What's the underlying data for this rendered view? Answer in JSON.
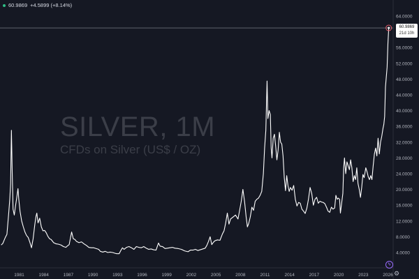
{
  "header": {
    "price": "60.9869",
    "change": "+4.5899 (+8.14%)",
    "indicator_color": "#2ebd85"
  },
  "watermark": {
    "title": "SILVER, 1M",
    "subtitle": "CFDs on Silver (US$ / OZ)"
  },
  "price_tag": {
    "price": "60.9869",
    "countdown": "21d 10h"
  },
  "icons": {
    "bolt": "lightning-icon",
    "gear": "gear-icon"
  },
  "chart_data": {
    "type": "line",
    "x_ticks": [
      "1981",
      "1984",
      "1987",
      "1990",
      "1993",
      "1996",
      "1999",
      "2002",
      "2005",
      "2008",
      "2011",
      "2014",
      "2017",
      "2020",
      "2023",
      "2026"
    ],
    "y_ticks": [
      "4.0000",
      "8.0000",
      "12.0000",
      "16.0000",
      "20.0000",
      "24.0000",
      "28.0000",
      "32.0000",
      "36.0000",
      "40.0000",
      "44.0000",
      "48.0000",
      "52.0000",
      "56.0000",
      "60.0000",
      "64.0000"
    ],
    "y_scale": "linear",
    "ylim": [
      0,
      65
    ],
    "xlim": [
      1978.8,
      2026.3
    ],
    "grid": false,
    "series_color": "#ffffff",
    "last_value": 60.9869,
    "points": [
      [
        1978.8,
        5.9
      ],
      [
        1979.0,
        6.3
      ],
      [
        1979.3,
        7.8
      ],
      [
        1979.5,
        8.6
      ],
      [
        1979.7,
        13.5
      ],
      [
        1979.85,
        17.5
      ],
      [
        1979.95,
        21.5
      ],
      [
        1980.05,
        35.0
      ],
      [
        1980.15,
        24.0
      ],
      [
        1980.25,
        15.0
      ],
      [
        1980.4,
        13.5
      ],
      [
        1980.55,
        15.8
      ],
      [
        1980.7,
        17.9
      ],
      [
        1980.85,
        20.2
      ],
      [
        1980.95,
        17.5
      ],
      [
        1981.1,
        14.5
      ],
      [
        1981.3,
        12.0
      ],
      [
        1981.5,
        10.5
      ],
      [
        1981.7,
        9.2
      ],
      [
        1981.9,
        8.3
      ],
      [
        1982.1,
        7.8
      ],
      [
        1982.3,
        6.6
      ],
      [
        1982.5,
        5.2
      ],
      [
        1982.7,
        7.5
      ],
      [
        1982.9,
        11.0
      ],
      [
        1983.05,
        13.2
      ],
      [
        1983.15,
        14.0
      ],
      [
        1983.3,
        11.5
      ],
      [
        1983.5,
        12.7
      ],
      [
        1983.7,
        10.5
      ],
      [
        1983.9,
        9.5
      ],
      [
        1984.1,
        9.6
      ],
      [
        1984.3,
        9.0
      ],
      [
        1984.5,
        8.1
      ],
      [
        1984.7,
        7.5
      ],
      [
        1984.9,
        7.3
      ],
      [
        1985.2,
        6.5
      ],
      [
        1985.5,
        6.2
      ],
      [
        1985.8,
        6.1
      ],
      [
        1986.1,
        5.9
      ],
      [
        1986.4,
        5.5
      ],
      [
        1986.7,
        5.3
      ],
      [
        1986.9,
        5.7
      ],
      [
        1987.1,
        6.0
      ],
      [
        1987.3,
        8.2
      ],
      [
        1987.4,
        9.2
      ],
      [
        1987.6,
        7.5
      ],
      [
        1987.8,
        7.3
      ],
      [
        1988.0,
        6.8
      ],
      [
        1988.3,
        6.5
      ],
      [
        1988.6,
        6.7
      ],
      [
        1988.9,
        6.2
      ],
      [
        1989.2,
        5.8
      ],
      [
        1989.5,
        5.3
      ],
      [
        1989.8,
        5.2
      ],
      [
        1990.1,
        5.2
      ],
      [
        1990.4,
        5.0
      ],
      [
        1990.7,
        4.8
      ],
      [
        1990.9,
        4.3
      ],
      [
        1991.2,
        4.1
      ],
      [
        1991.5,
        4.3
      ],
      [
        1991.8,
        4.0
      ],
      [
        1992.1,
        4.1
      ],
      [
        1992.4,
        4.0
      ],
      [
        1992.7,
        3.8
      ],
      [
        1992.9,
        3.7
      ],
      [
        1993.2,
        3.7
      ],
      [
        1993.4,
        4.5
      ],
      [
        1993.6,
        5.2
      ],
      [
        1993.8,
        4.8
      ],
      [
        1994.1,
        5.3
      ],
      [
        1994.4,
        5.5
      ],
      [
        1994.7,
        5.2
      ],
      [
        1995.0,
        4.8
      ],
      [
        1995.3,
        5.5
      ],
      [
        1995.6,
        5.3
      ],
      [
        1995.9,
        5.2
      ],
      [
        1996.2,
        5.5
      ],
      [
        1996.5,
        5.1
      ],
      [
        1996.8,
        4.8
      ],
      [
        1997.1,
        4.9
      ],
      [
        1997.4,
        4.7
      ],
      [
        1997.7,
        4.6
      ],
      [
        1998.0,
        6.4
      ],
      [
        1998.2,
        5.6
      ],
      [
        1998.5,
        5.5
      ],
      [
        1998.8,
        5.0
      ],
      [
        1999.1,
        5.1
      ],
      [
        1999.4,
        5.2
      ],
      [
        1999.7,
        5.3
      ],
      [
        2000.0,
        5.1
      ],
      [
        2000.4,
        5.0
      ],
      [
        2000.8,
        4.8
      ],
      [
        2001.2,
        4.4
      ],
      [
        2001.6,
        4.2
      ],
      [
        2001.9,
        4.6
      ],
      [
        2002.2,
        4.6
      ],
      [
        2002.5,
        4.8
      ],
      [
        2002.8,
        4.5
      ],
      [
        2003.1,
        4.7
      ],
      [
        2003.4,
        4.9
      ],
      [
        2003.7,
        5.1
      ],
      [
        2003.9,
        5.8
      ],
      [
        2004.1,
        6.8
      ],
      [
        2004.3,
        8.0
      ],
      [
        2004.5,
        6.0
      ],
      [
        2004.7,
        6.6
      ],
      [
        2004.9,
        7.0
      ],
      [
        2005.2,
        7.2
      ],
      [
        2005.5,
        7.1
      ],
      [
        2005.8,
        8.7
      ],
      [
        2006.0,
        9.5
      ],
      [
        2006.2,
        11.5
      ],
      [
        2006.4,
        14.0
      ],
      [
        2006.6,
        11.2
      ],
      [
        2006.8,
        12.5
      ],
      [
        2007.1,
        13.0
      ],
      [
        2007.4,
        13.5
      ],
      [
        2007.7,
        12.5
      ],
      [
        2007.9,
        14.7
      ],
      [
        2008.1,
        17.0
      ],
      [
        2008.3,
        20.0
      ],
      [
        2008.5,
        17.0
      ],
      [
        2008.7,
        13.0
      ],
      [
        2008.85,
        10.5
      ],
      [
        2009.0,
        11.3
      ],
      [
        2009.2,
        13.0
      ],
      [
        2009.4,
        15.5
      ],
      [
        2009.6,
        14.7
      ],
      [
        2009.8,
        17.0
      ],
      [
        2010.0,
        17.5
      ],
      [
        2010.2,
        17.8
      ],
      [
        2010.4,
        18.5
      ],
      [
        2010.6,
        19.5
      ],
      [
        2010.8,
        24.0
      ],
      [
        2010.95,
        30.5
      ],
      [
        2011.1,
        35.0
      ],
      [
        2011.25,
        47.5
      ],
      [
        2011.35,
        38.0
      ],
      [
        2011.5,
        40.0
      ],
      [
        2011.65,
        39.0
      ],
      [
        2011.75,
        30.5
      ],
      [
        2011.85,
        28.0
      ],
      [
        2012.0,
        33.0
      ],
      [
        2012.15,
        34.0
      ],
      [
        2012.3,
        31.0
      ],
      [
        2012.45,
        27.5
      ],
      [
        2012.6,
        30.0
      ],
      [
        2012.75,
        34.5
      ],
      [
        2012.9,
        32.0
      ],
      [
        2013.05,
        31.5
      ],
      [
        2013.2,
        28.5
      ],
      [
        2013.35,
        23.0
      ],
      [
        2013.5,
        19.7
      ],
      [
        2013.65,
        23.5
      ],
      [
        2013.8,
        21.0
      ],
      [
        2013.95,
        19.5
      ],
      [
        2014.1,
        20.5
      ],
      [
        2014.3,
        19.8
      ],
      [
        2014.5,
        21.0
      ],
      [
        2014.7,
        17.5
      ],
      [
        2014.9,
        15.8
      ],
      [
        2015.1,
        16.7
      ],
      [
        2015.3,
        16.5
      ],
      [
        2015.5,
        15.0
      ],
      [
        2015.7,
        14.5
      ],
      [
        2015.9,
        13.9
      ],
      [
        2016.1,
        15.2
      ],
      [
        2016.3,
        17.5
      ],
      [
        2016.5,
        20.5
      ],
      [
        2016.7,
        19.0
      ],
      [
        2016.9,
        16.0
      ],
      [
        2017.1,
        17.5
      ],
      [
        2017.3,
        18.0
      ],
      [
        2017.5,
        16.5
      ],
      [
        2017.7,
        17.0
      ],
      [
        2017.9,
        16.8
      ],
      [
        2018.1,
        16.7
      ],
      [
        2018.3,
        16.4
      ],
      [
        2018.5,
        15.5
      ],
      [
        2018.7,
        14.5
      ],
      [
        2018.9,
        14.2
      ],
      [
        2019.1,
        15.5
      ],
      [
        2019.3,
        15.0
      ],
      [
        2019.5,
        15.3
      ],
      [
        2019.65,
        18.5
      ],
      [
        2019.8,
        17.5
      ],
      [
        2019.95,
        17.8
      ],
      [
        2020.1,
        17.5
      ],
      [
        2020.2,
        14.0
      ],
      [
        2020.35,
        16.5
      ],
      [
        2020.5,
        19.0
      ],
      [
        2020.6,
        25.5
      ],
      [
        2020.7,
        28.0
      ],
      [
        2020.85,
        24.0
      ],
      [
        2021.0,
        27.0
      ],
      [
        2021.15,
        26.0
      ],
      [
        2021.3,
        25.0
      ],
      [
        2021.45,
        27.5
      ],
      [
        2021.6,
        25.5
      ],
      [
        2021.75,
        22.0
      ],
      [
        2021.9,
        23.5
      ],
      [
        2022.05,
        22.5
      ],
      [
        2022.2,
        25.5
      ],
      [
        2022.35,
        21.5
      ],
      [
        2022.5,
        20.0
      ],
      [
        2022.65,
        18.0
      ],
      [
        2022.8,
        20.5
      ],
      [
        2022.95,
        23.8
      ],
      [
        2023.1,
        23.0
      ],
      [
        2023.3,
        25.5
      ],
      [
        2023.45,
        24.5
      ],
      [
        2023.6,
        23.2
      ],
      [
        2023.75,
        22.5
      ],
      [
        2023.9,
        23.5
      ],
      [
        2024.05,
        22.5
      ],
      [
        2024.2,
        26.0
      ],
      [
        2024.35,
        29.0
      ],
      [
        2024.5,
        30.5
      ],
      [
        2024.65,
        28.5
      ],
      [
        2024.8,
        33.0
      ],
      [
        2024.95,
        29.0
      ],
      [
        2025.1,
        32.0
      ],
      [
        2025.25,
        33.5
      ],
      [
        2025.4,
        35.5
      ],
      [
        2025.5,
        36.5
      ],
      [
        2025.6,
        38.5
      ],
      [
        2025.7,
        46.0
      ],
      [
        2025.8,
        48.5
      ],
      [
        2025.9,
        51.0
      ],
      [
        2026.0,
        57.0
      ],
      [
        2026.1,
        60.9869
      ]
    ]
  }
}
